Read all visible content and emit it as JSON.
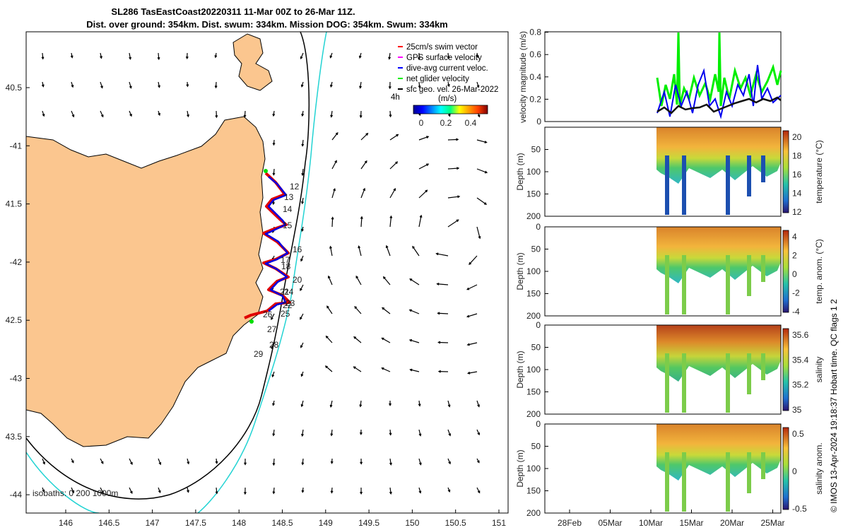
{
  "chart_data": {
    "type": "map+timeseries",
    "title_line1": "SL286 TasEastCoast20220311 11-Mar 00Z to 26-Mar 11Z.",
    "title_line2": "Dist. over ground: 354km. Dist. swum: 334km. Mission DOG: 354km. Swum: 334km",
    "side_caption": "© IMOS 13-Apr-2024 19:18:37 Hobart time. QC flags 1  2",
    "map": {
      "lon_ticks": [
        "146",
        "146.5",
        "147",
        "147.5",
        "148",
        "148.5",
        "149",
        "149.5",
        "150",
        "150.5",
        "151"
      ],
      "lat_ticks": [
        "40.5",
        "-41",
        "41.5",
        "-42",
        "42.5",
        "-43",
        "43.5",
        "-44"
      ],
      "legend": [
        {
          "label": "25cm/s swim vector",
          "color": "#ff0000"
        },
        {
          "label": "GPS surface velocity",
          "color": "#ff00ff"
        },
        {
          "label": "dive-avg current veloc.",
          "color": "#0000ff"
        },
        {
          "label": "net glider velocity",
          "color": "#00ee00"
        },
        {
          "label": "sfc geo. vel. 26-Mar-2022",
          "color": "#000000"
        }
      ],
      "colorbar_prefix": "4h",
      "colorbar_unit": "(m/s)",
      "colorbar_ticks": [
        "0",
        "0.2",
        "0.4"
      ],
      "day_labels": [
        "12",
        "13",
        "14",
        "15",
        "16",
        "17",
        "18",
        "20",
        "21",
        "24",
        "22",
        "23",
        "25",
        "26",
        "27",
        "28",
        "29"
      ],
      "isobath_note": "isobaths: 0   200 1000m"
    },
    "panels": [
      {
        "ylabel": "velocity magnitude (m/s)",
        "yticks": [
          "0",
          "0.2",
          "0.4",
          "0.6",
          "0.8"
        ]
      },
      {
        "ylabel": "Depth (m)",
        "yticks": [
          "50",
          "100",
          "150",
          "200"
        ],
        "cb_label": "temperature (°C)",
        "cb_ticks": [
          "20",
          "18",
          "16",
          "14",
          "12"
        ]
      },
      {
        "ylabel": "Depth (m)",
        "yticks": [
          "0",
          "50",
          "100",
          "150",
          "200"
        ],
        "cb_label": "temp. anom. (°C)",
        "cb_ticks": [
          "4",
          "2",
          "0",
          "-2",
          "-4"
        ]
      },
      {
        "ylabel": "Depth (m)",
        "yticks": [
          "0",
          "50",
          "100",
          "150",
          "200"
        ],
        "cb_label": "salinity",
        "cb_ticks": [
          "35.6",
          "35.4",
          "35.2",
          "35"
        ]
      },
      {
        "ylabel": "Depth (m)",
        "yticks": [
          "0",
          "50",
          "100",
          "150",
          "200"
        ],
        "cb_label": "salinity anom.",
        "cb_ticks": [
          "0.5",
          "0",
          "-0.5"
        ]
      }
    ],
    "time_ticks": [
      "28Feb",
      "05Mar",
      "10Mar",
      "15Mar",
      "20Mar",
      "25Mar"
    ]
  }
}
